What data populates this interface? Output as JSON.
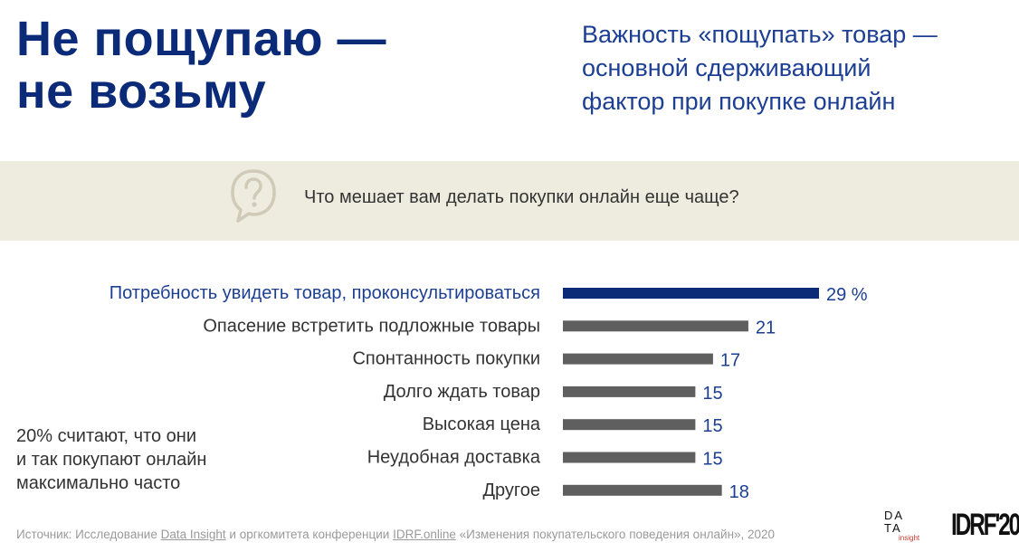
{
  "header": {
    "title_line1": "Не пощупаю —",
    "title_line2": "не возьму",
    "subtitle_line1": "Важность «пощупать» товар —",
    "subtitle_line2": "основной сдерживающий",
    "subtitle_line3": "фактор при покупке онлайн"
  },
  "question": {
    "icon": "question-bubble-icon",
    "text": "Что мешает вам делать покупки онлайн еще чаще?"
  },
  "note": {
    "line1": "20% считают, что они",
    "line2": "и так покупают онлайн",
    "line3": "максимально часто"
  },
  "chart_data": {
    "type": "bar",
    "orientation": "horizontal",
    "categories": [
      "Потребность увидеть товар, проконсультироваться",
      "Опасение встретить подложные товары",
      "Спонтанность покупки",
      "Долго ждать товар",
      "Высокая цена",
      "Неудобная доставка",
      "Другое"
    ],
    "values": [
      29,
      21,
      17,
      15,
      15,
      15,
      18
    ],
    "value_labels": [
      "29 %",
      "21",
      "17",
      "15",
      "15",
      "15",
      "18"
    ],
    "highlight_index": 0,
    "colors": {
      "highlight": "#0b2a78",
      "default": "#5f5f5f",
      "label_highlight": "#1c3f93",
      "label_default": "#333333",
      "value": "#1c3f93"
    },
    "xlim": [
      0,
      29
    ],
    "grid": false,
    "legend": "none"
  },
  "footer": {
    "source_prefix": "Источник: Исследование ",
    "source_link1": "Data Insight",
    "source_middle": " и оргкомитета конференции ",
    "source_link2": "IDRF.online",
    "source_suffix": " «Изменения покупательского поведения онлайн», 2020",
    "logo1_row1": "DA",
    "logo1_row2": "TA",
    "logo1_row3": "insight",
    "logo2": "IDRF'20"
  }
}
